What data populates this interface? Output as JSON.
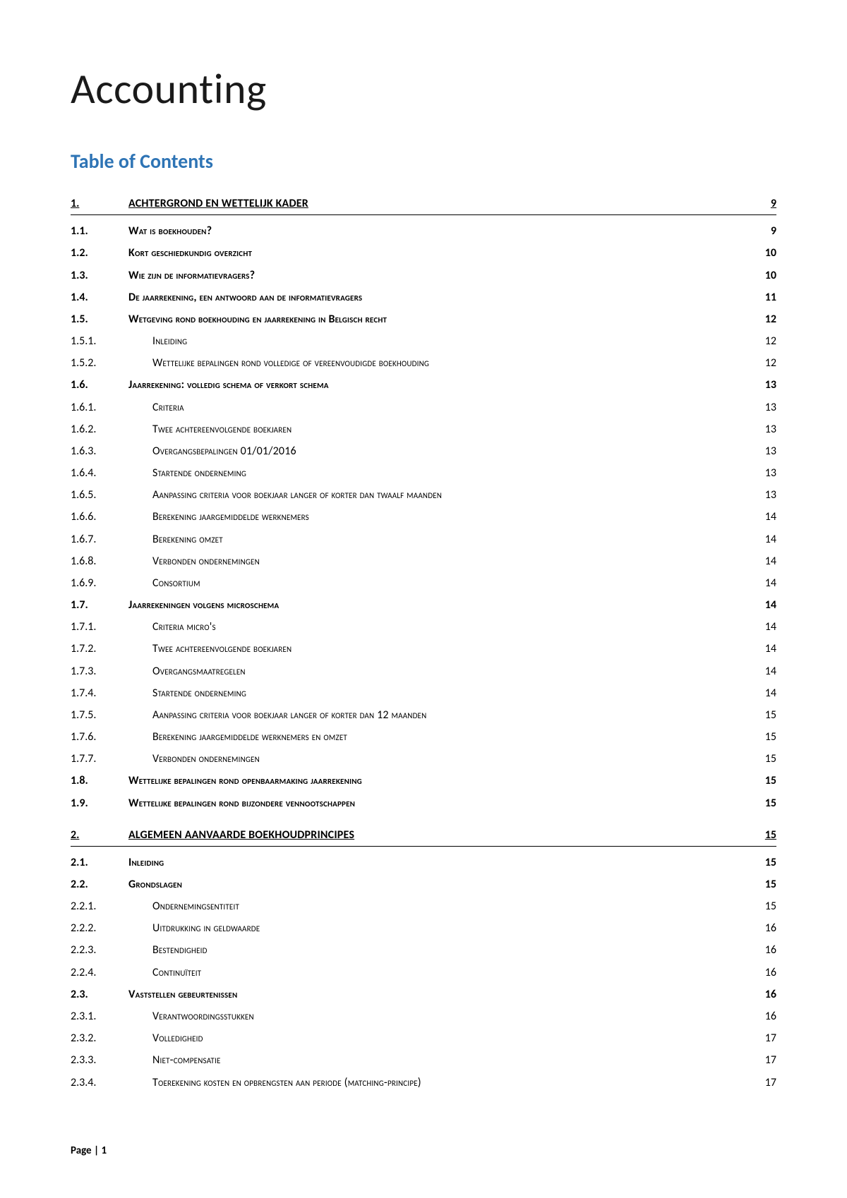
{
  "title": "Accounting",
  "toc_heading": "Table of Contents",
  "footer": "Page | 1",
  "colors": {
    "heading": "#2e74b5",
    "text": "#000000",
    "background": "#ffffff"
  },
  "entries": [
    {
      "level": 1,
      "num": "1.",
      "title": "Achtergrond en wettelijk kader",
      "page": "9"
    },
    {
      "level": 2,
      "num": "1.1.",
      "title": "Wat is boekhouden?",
      "page": "9"
    },
    {
      "level": 2,
      "num": "1.2.",
      "title": "Kort geschiedkundig overzicht",
      "page": "10"
    },
    {
      "level": 2,
      "num": "1.3.",
      "title": "Wie zijn de informatievragers?",
      "page": "10"
    },
    {
      "level": 2,
      "num": "1.4.",
      "title": "De jaarrekening, een antwoord aan de informatievragers",
      "page": "11"
    },
    {
      "level": 2,
      "num": "1.5.",
      "title": "Wetgeving rond boekhouding en jaarrekening in Belgisch recht",
      "page": "12"
    },
    {
      "level": 3,
      "num": "1.5.1.",
      "title": "Inleiding",
      "page": "12"
    },
    {
      "level": 3,
      "num": "1.5.2.",
      "title": "Wettelijke bepalingen rond volledige of vereenvoudigde boekhouding",
      "page": "12"
    },
    {
      "level": 2,
      "num": "1.6.",
      "title": "Jaarrekening: volledig schema of verkort schema",
      "page": "13"
    },
    {
      "level": 3,
      "num": "1.6.1.",
      "title": "Criteria",
      "page": "13"
    },
    {
      "level": 3,
      "num": "1.6.2.",
      "title": "Twee achtereenvolgende boekjaren",
      "page": "13"
    },
    {
      "level": 3,
      "num": "1.6.3.",
      "title": "Overgangsbepalingen 01/01/2016",
      "page": "13"
    },
    {
      "level": 3,
      "num": "1.6.4.",
      "title": "Startende onderneming",
      "page": "13"
    },
    {
      "level": 3,
      "num": "1.6.5.",
      "title": "Aanpassing criteria voor boekjaar langer of korter dan twaalf maanden",
      "page": "13"
    },
    {
      "level": 3,
      "num": "1.6.6.",
      "title": "Berekening jaargemiddelde werknemers",
      "page": "14"
    },
    {
      "level": 3,
      "num": "1.6.7.",
      "title": "Berekening omzet",
      "page": "14"
    },
    {
      "level": 3,
      "num": "1.6.8.",
      "title": "Verbonden ondernemingen",
      "page": "14"
    },
    {
      "level": 3,
      "num": "1.6.9.",
      "title": "Consortium",
      "page": "14"
    },
    {
      "level": 2,
      "num": "1.7.",
      "title": "Jaarrekeningen volgens microschema",
      "page": "14"
    },
    {
      "level": 3,
      "num": "1.7.1.",
      "title": "Criteria micro's",
      "page": "14"
    },
    {
      "level": 3,
      "num": "1.7.2.",
      "title": "Twee achtereenvolgende boekjaren",
      "page": "14"
    },
    {
      "level": 3,
      "num": "1.7.3.",
      "title": "Overgangsmaatregelen",
      "page": "14"
    },
    {
      "level": 3,
      "num": "1.7.4.",
      "title": "Startende onderneming",
      "page": "14"
    },
    {
      "level": 3,
      "num": "1.7.5.",
      "title": "Aanpassing criteria voor boekjaar langer of korter dan 12 maanden",
      "page": "15"
    },
    {
      "level": 3,
      "num": "1.7.6.",
      "title": "Berekening jaargemiddelde werknemers en omzet",
      "page": "15"
    },
    {
      "level": 3,
      "num": "1.7.7.",
      "title": "Verbonden ondernemingen",
      "page": "15"
    },
    {
      "level": 2,
      "num": "1.8.",
      "title": "Wettelijke bepalingen rond openbaarmaking jaarrekening",
      "page": "15"
    },
    {
      "level": 2,
      "num": "1.9.",
      "title": "Wettelijke bepalingen rond bijzondere vennootschappen",
      "page": "15"
    },
    {
      "level": 1,
      "num": "2.",
      "title": "Algemeen aanvaarde boekhoudprincipes",
      "page": "15"
    },
    {
      "level": 2,
      "num": "2.1.",
      "title": "Inleiding",
      "page": "15"
    },
    {
      "level": 2,
      "num": "2.2.",
      "title": "Grondslagen",
      "page": "15"
    },
    {
      "level": 3,
      "num": "2.2.1.",
      "title": "Ondernemingsentiteit",
      "page": "15"
    },
    {
      "level": 3,
      "num": "2.2.2.",
      "title": "Uitdrukking in geldwaarde",
      "page": "16"
    },
    {
      "level": 3,
      "num": "2.2.3.",
      "title": "Bestendigheid",
      "page": "16"
    },
    {
      "level": 3,
      "num": "2.2.4.",
      "title": "Continuïteit",
      "page": "16"
    },
    {
      "level": 2,
      "num": "2.3.",
      "title": "Vaststellen gebeurtenissen",
      "page": "16"
    },
    {
      "level": 3,
      "num": "2.3.1.",
      "title": "Verantwoordingsstukken",
      "page": "16"
    },
    {
      "level": 3,
      "num": "2.3.2.",
      "title": "Volledigheid",
      "page": "17"
    },
    {
      "level": 3,
      "num": "2.3.3.",
      "title": "Niet-compensatie",
      "page": "17"
    },
    {
      "level": 3,
      "num": "2.3.4.",
      "title": "Toerekening kosten en opbrengsten aan periode (matching-principe)",
      "page": "17"
    }
  ]
}
